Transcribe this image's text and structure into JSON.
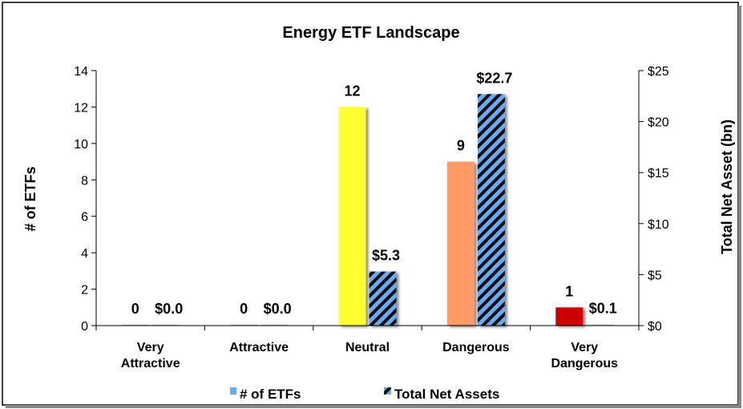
{
  "chart_data": {
    "type": "bar",
    "title": "Energy ETF Landscape",
    "categories": [
      "Very Attractive",
      "Attractive",
      "Neutral",
      "Dangerous",
      "Very Dangerous"
    ],
    "series": [
      {
        "name": "# of ETFs",
        "axis": "left",
        "values": [
          0,
          0,
          12,
          9,
          1
        ],
        "labels": [
          "0",
          "0",
          "12",
          "9",
          "1"
        ],
        "colors": [
          "#ffff33",
          "#ffff33",
          "#ffff33",
          "#ff9966",
          "#cc0000"
        ],
        "legend_color": "#6aaaf2"
      },
      {
        "name": "Total Net Assets",
        "axis": "right",
        "values": [
          0.0,
          0.0,
          5.3,
          22.7,
          0.1
        ],
        "labels": [
          "$0.0",
          "$0.0",
          "$5.3",
          "$22.7",
          "$0.1"
        ],
        "pattern": "diagonal-stripes",
        "colors": [
          "#6aaaf2",
          "#111111"
        ]
      }
    ],
    "ylabel": "# of ETFs",
    "y2label": "Total Net Asset (bn)",
    "ylim": [
      0,
      14
    ],
    "y2lim": [
      0,
      25
    ],
    "yticks": [
      "0",
      "2",
      "4",
      "6",
      "8",
      "10",
      "12",
      "14"
    ],
    "y2ticks": [
      "$0",
      "$5",
      "$10",
      "$15",
      "$20",
      "$25"
    ],
    "grid": false,
    "legend_position": "bottom"
  }
}
